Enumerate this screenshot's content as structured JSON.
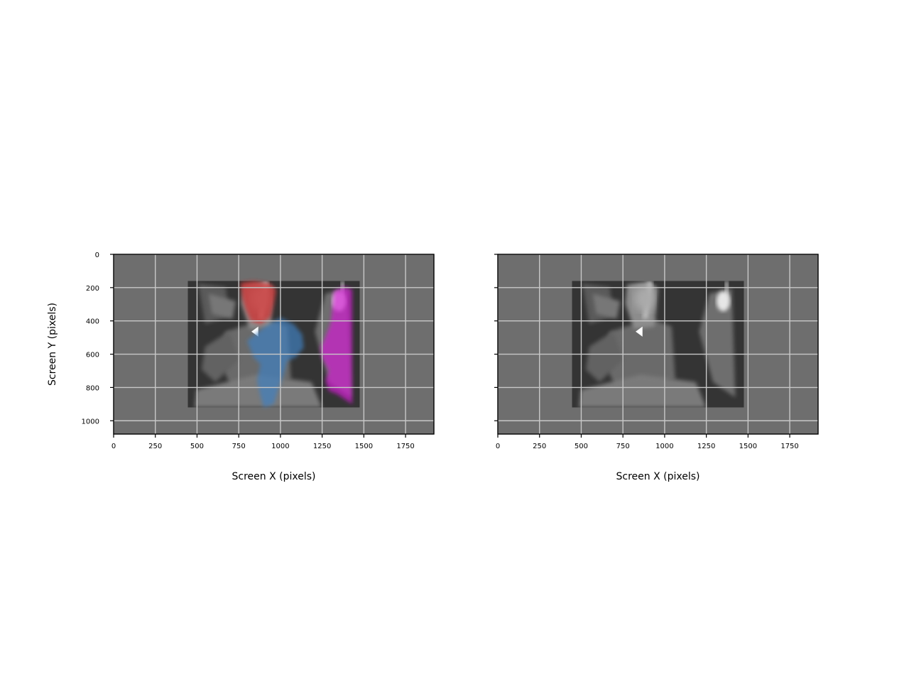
{
  "chart_data": [
    {
      "type": "image",
      "panel": "left",
      "xlabel": "Screen X (pixels)",
      "ylabel": "Screen Y (pixels)",
      "xlim": [
        0,
        1920
      ],
      "ylim": [
        1080,
        0
      ],
      "xticks": [
        0,
        250,
        500,
        750,
        1000,
        1250,
        1500,
        1750
      ],
      "yticks": [
        0,
        200,
        400,
        600,
        800,
        1000
      ],
      "show_yticklabels": true,
      "grid": true,
      "background_color": "#6e6e6e",
      "image_extent": [
        445,
        1475,
        160,
        920
      ],
      "overlays": [
        {
          "name": "red-region",
          "color": "#d62728"
        },
        {
          "name": "blue-region",
          "color": "#3f7fbf"
        },
        {
          "name": "magenta-region",
          "color": "#d020d0"
        }
      ]
    },
    {
      "type": "image",
      "panel": "right",
      "xlabel": "Screen X (pixels)",
      "ylabel": "",
      "xlim": [
        0,
        1920
      ],
      "ylim": [
        1080,
        0
      ],
      "xticks": [
        0,
        250,
        500,
        750,
        1000,
        1250,
        1500,
        1750
      ],
      "yticks": [
        0,
        200,
        400,
        600,
        800,
        1000
      ],
      "show_yticklabels": false,
      "grid": true,
      "background_color": "#6e6e6e",
      "image_extent": [
        445,
        1475,
        160,
        920
      ]
    }
  ]
}
